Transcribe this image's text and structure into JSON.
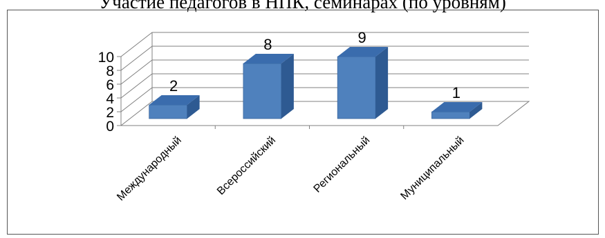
{
  "chart_data": {
    "type": "bar",
    "title": "Участие педагогов в НПК, семинарах  (по уровням)",
    "categories": [
      "Международный",
      "Всероссийский",
      "Региональный",
      "Муниципальный"
    ],
    "values": [
      2,
      8,
      9,
      1
    ],
    "ylim": [
      0,
      10
    ],
    "yticks": [
      0,
      2,
      4,
      6,
      8,
      10
    ],
    "grid": true,
    "legend": "none",
    "bar_color": "#4F81BD",
    "bar_top_color": "#3A6CAD",
    "bar_side_color": "#2E5A92"
  }
}
